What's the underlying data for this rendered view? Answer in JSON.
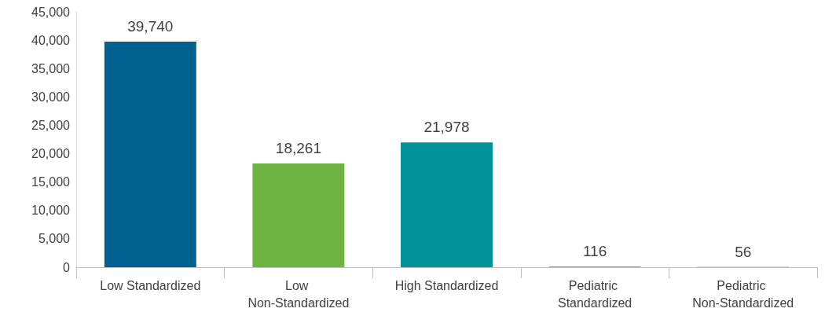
{
  "chart_data": {
    "type": "bar",
    "categories": [
      "Low Standardized",
      "Low Non-Standardized",
      "High Standardized",
      "Pediatric Standardized",
      "Pediatric Non-Standardized"
    ],
    "values": [
      39740,
      18261,
      21978,
      116,
      56
    ],
    "value_labels": [
      "39,740",
      "18,261",
      "21,978",
      "116",
      "56"
    ],
    "colors": [
      "#006190",
      "#6db33f",
      "#00929a",
      "#5b7fa6",
      "#8cc36a"
    ],
    "ylim": [
      0,
      45000
    ],
    "yticks": [
      0,
      {
        "value": 5000,
        "label": "5,000"
      },
      {
        "value": 10000,
        "label": "10,000"
      },
      {
        "value": 15000,
        "label": "15,000"
      },
      {
        "value": 20000,
        "label": "20,000"
      },
      {
        "value": 25000,
        "label": "25,000"
      },
      {
        "value": 30000,
        "label": "30,000"
      },
      {
        "value": 35000,
        "label": "35,000"
      },
      {
        "value": 40000,
        "label": "40,000"
      },
      {
        "value": 45000,
        "label": "45,000"
      }
    ],
    "grid": false
  }
}
